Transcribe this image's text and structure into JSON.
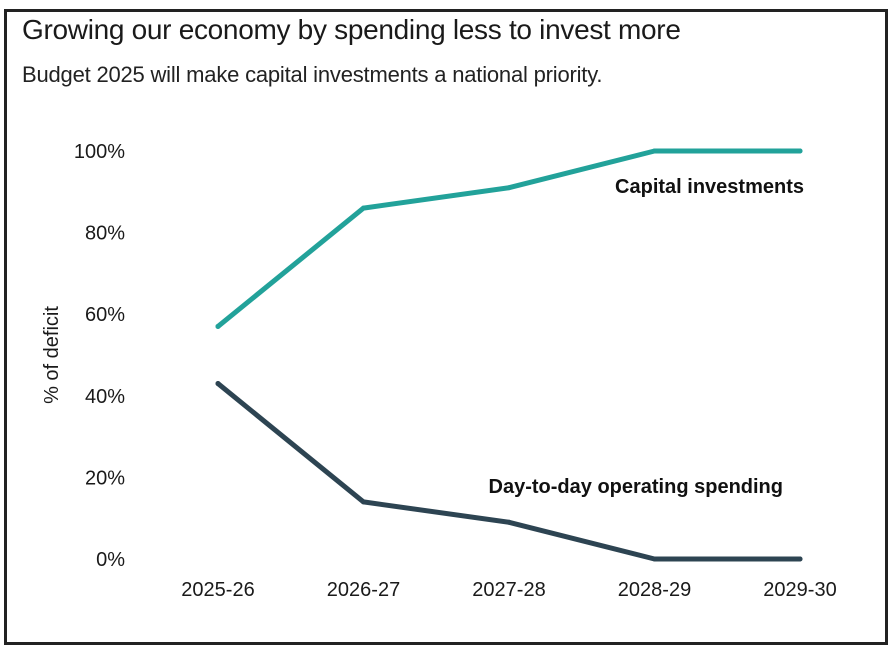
{
  "chart_data": {
    "type": "line",
    "title": "Growing our economy by spending less to invest more",
    "subtitle": "Budget 2025 will make capital investments a national priority.",
    "xlabel": "",
    "ylabel": "% of deficit",
    "categories": [
      "2025-26",
      "2026-27",
      "2027-28",
      "2028-29",
      "2029-30"
    ],
    "y_ticks": [
      "0%",
      "20%",
      "40%",
      "60%",
      "80%",
      "100%"
    ],
    "y_tick_values": [
      0,
      20,
      40,
      60,
      80,
      100
    ],
    "ylim": [
      0,
      100
    ],
    "grid": false,
    "series": [
      {
        "name": "Capital investments",
        "color": "#22a29a",
        "values": [
          57,
          86,
          91,
          100,
          100
        ]
      },
      {
        "name": "Day-to-day operating spending",
        "color": "#2d4452",
        "values": [
          43,
          14,
          9,
          0,
          0
        ]
      }
    ]
  }
}
